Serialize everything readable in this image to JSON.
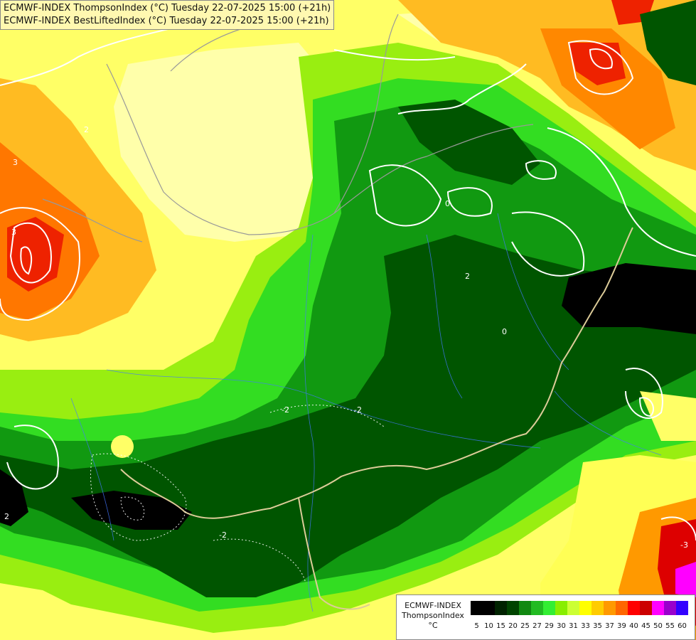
{
  "title": {
    "line1": "ECMWF-INDEX ThompsonIndex (°C) Tuesday 22-07-2025 15:00 (+21h)",
    "line2": "ECMWF-INDEX BestLiftedIndex (°C) Tuesday 22-07-2025 15:00 (+21h)"
  },
  "legend": {
    "line1": "ECMWF-INDEX",
    "line2": "ThompsonIndex",
    "line3": "°C",
    "levels": [
      {
        "label": "5",
        "color": "#000000"
      },
      {
        "label": "10",
        "color": "#000000"
      },
      {
        "label": "15",
        "color": "#002200"
      },
      {
        "label": "20",
        "color": "#004400"
      },
      {
        "label": "25",
        "color": "#118811"
      },
      {
        "label": "27",
        "color": "#22bb22"
      },
      {
        "label": "29",
        "color": "#33ee33"
      },
      {
        "label": "30",
        "color": "#88ee00"
      },
      {
        "label": "31",
        "color": "#ccff33"
      },
      {
        "label": "33",
        "color": "#ffff00"
      },
      {
        "label": "35",
        "color": "#ffcc00"
      },
      {
        "label": "37",
        "color": "#ff9900"
      },
      {
        "label": "39",
        "color": "#ff6600"
      },
      {
        "label": "40",
        "color": "#ff0000"
      },
      {
        "label": "45",
        "color": "#cc0000"
      },
      {
        "label": "50",
        "color": "#ff00ff"
      },
      {
        "label": "55",
        "color": "#9900cc"
      },
      {
        "label": "60",
        "color": "#3300ff"
      }
    ]
  },
  "contour_labels": [
    "2",
    "-2",
    "3",
    "3",
    "0",
    "-2",
    "-2",
    "2",
    "-3",
    "-2",
    "0",
    "2"
  ]
}
